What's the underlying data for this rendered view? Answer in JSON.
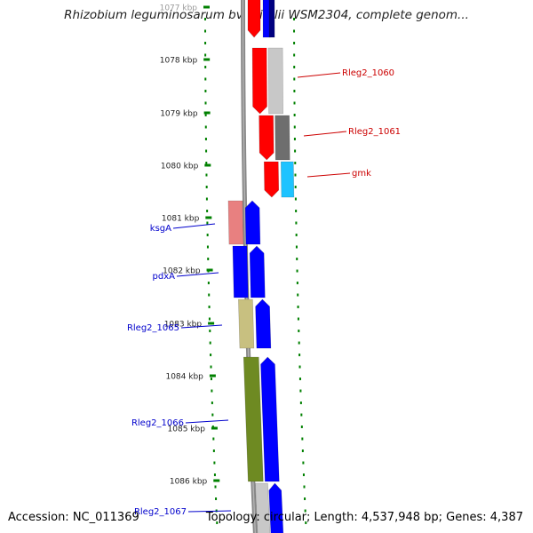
{
  "title": "Rhizobium leguminosarum bv. trifolii WSM2304, complete genom...",
  "accession_text": "Accession: NC_011369",
  "topology_text": "Topology: circular; Length: 4,537,948 bp; Genes: 4,387",
  "ticks": [
    "1077 kbp",
    "1078 kbp",
    "1079 kbp",
    "1080 kbp",
    "1081 kbp",
    "1082 kbp",
    "1083 kbp",
    "1084 kbp",
    "1085 kbp",
    "1086 kbp"
  ],
  "gene_labels": [
    "Rleg2_1060",
    "Rleg2_1061",
    "gmk",
    "ksgA",
    "pdxA",
    "Rleg2_1065",
    "Rleg2_1066",
    "Rleg2_1067"
  ],
  "colors": {
    "red": "#ff0000",
    "blue": "#0000ff",
    "navy": "#000080",
    "label_red": "#cc0000",
    "label_blue": "#0000cc",
    "light_gray": "#c8c8c8",
    "dark_gray": "#6e6e6e",
    "cyan": "#1ec3ff",
    "salmon": "#e88080",
    "khaki": "#c8c080",
    "olive": "#6e8a22",
    "tick_green": "#008000",
    "backbone": "#888888"
  }
}
